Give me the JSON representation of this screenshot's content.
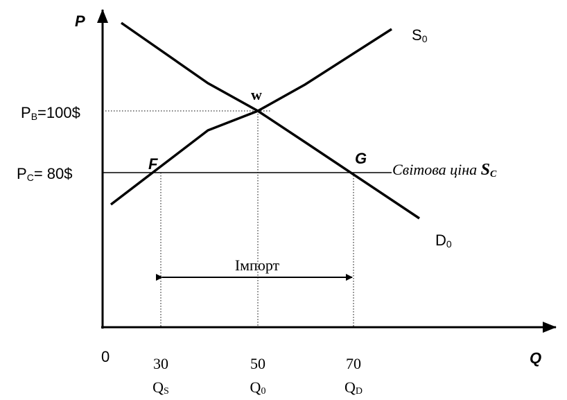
{
  "axes": {
    "y_label": "P",
    "x_label": "Q",
    "origin": "0"
  },
  "curves": {
    "supply": {
      "label": "S",
      "sub": "0"
    },
    "demand": {
      "label": "D",
      "sub": "0"
    }
  },
  "points": {
    "w": "w",
    "f": "F",
    "g": "G"
  },
  "prices": [
    {
      "label": "P",
      "sub": "В",
      "rest": "=100$"
    },
    {
      "label": "P",
      "sub": "C",
      "rest": "= 80$"
    }
  ],
  "world_price": {
    "text": "Світова ціна ",
    "symbol": "S",
    "sub": "C"
  },
  "import": "Імпорт",
  "quantities": [
    {
      "value": "30",
      "label": "Q",
      "sub": "S"
    },
    {
      "value": "50",
      "label": "Q",
      "sub": "0"
    },
    {
      "value": "70",
      "label": "Q",
      "sub": "D"
    }
  ]
}
